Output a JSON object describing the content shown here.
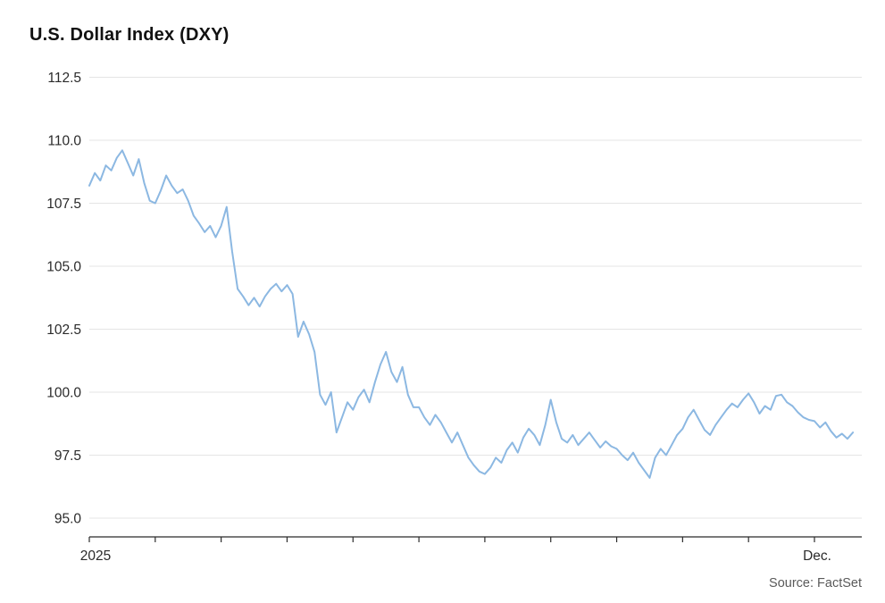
{
  "header": {
    "title": "U.S. Dollar Index (DXY)"
  },
  "footer": {
    "source": "Source: FactSet"
  },
  "colors": {
    "line": "#8cb8e2",
    "grid": "#e4e4e4",
    "axis": "#2b2b2b",
    "tick_text": "#2b2b2b",
    "title_text": "#111111",
    "source_text": "#5a5a5a",
    "background": "#ffffff"
  },
  "chart_data": {
    "type": "line",
    "title": "U.S. Dollar Index (DXY)",
    "xlabel": "",
    "ylabel": "",
    "ylim": [
      95.0,
      112.5
    ],
    "grid": "horizontal",
    "legend": "none",
    "y_ticks": [
      95.0,
      97.5,
      100.0,
      102.5,
      105.0,
      107.5,
      110.0,
      112.5
    ],
    "x_axis": {
      "tick_count": 12,
      "unit": "month",
      "points_per_month": 12
    },
    "x_tick_labels": [
      {
        "label": "2025",
        "month_index": 0
      },
      {
        "label": "Dec.",
        "month_index": 11
      }
    ],
    "series": [
      {
        "name": "DXY",
        "values": [
          108.2,
          108.7,
          108.4,
          109.0,
          108.8,
          109.3,
          109.6,
          109.1,
          108.6,
          109.25,
          108.3,
          107.6,
          107.5,
          108.0,
          108.6,
          108.2,
          107.9,
          108.05,
          107.6,
          107.0,
          106.7,
          106.35,
          106.6,
          106.15,
          106.6,
          107.35,
          105.6,
          104.1,
          103.8,
          103.45,
          103.75,
          103.4,
          103.8,
          104.1,
          104.3,
          104.0,
          104.25,
          103.9,
          102.2,
          102.8,
          102.3,
          101.6,
          99.9,
          99.5,
          100.0,
          98.4,
          99.0,
          99.6,
          99.3,
          99.8,
          100.1,
          99.6,
          100.4,
          101.1,
          101.6,
          100.8,
          100.4,
          101.0,
          99.9,
          99.4,
          99.4,
          99.0,
          98.7,
          99.1,
          98.8,
          98.4,
          98.0,
          98.4,
          97.9,
          97.4,
          97.1,
          96.85,
          96.75,
          97.0,
          97.4,
          97.2,
          97.7,
          98.0,
          97.6,
          98.2,
          98.55,
          98.3,
          97.9,
          98.7,
          99.7,
          98.8,
          98.15,
          98.0,
          98.3,
          97.9,
          98.15,
          98.4,
          98.1,
          97.8,
          98.05,
          97.85,
          97.75,
          97.5,
          97.3,
          97.6,
          97.2,
          96.9,
          96.6,
          97.4,
          97.75,
          97.5,
          97.9,
          98.3,
          98.55,
          99.0,
          99.3,
          98.9,
          98.5,
          98.3,
          98.7,
          99.0,
          99.3,
          99.55,
          99.4,
          99.7,
          99.95,
          99.6,
          99.15,
          99.45,
          99.3,
          99.85,
          99.9,
          99.6,
          99.45,
          99.2,
          99.0,
          98.9,
          98.85,
          98.6,
          98.8,
          98.45,
          98.2,
          98.35,
          98.15,
          98.4
        ]
      }
    ]
  }
}
